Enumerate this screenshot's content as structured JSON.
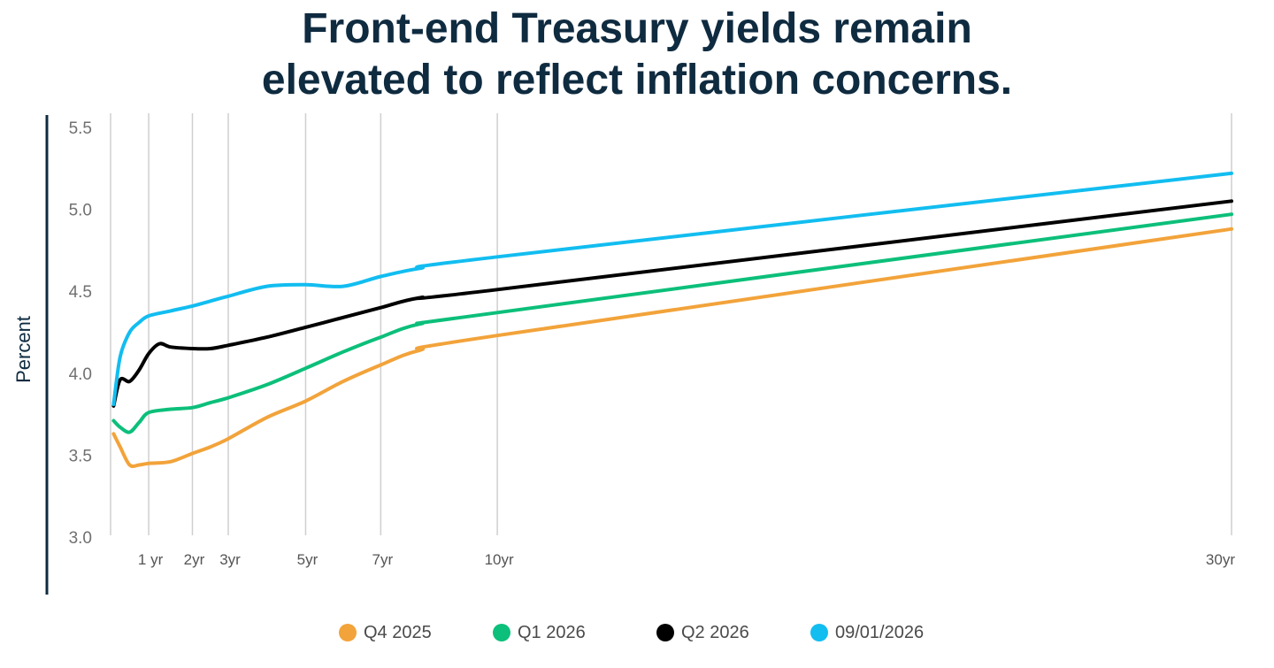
{
  "chart_data": {
    "type": "line",
    "title": [
      "Front-end Treasury yields remain",
      "elevated to reflect inflation concerns."
    ],
    "ylabel": "Percent",
    "xlabel": "",
    "ylim": [
      3.0,
      5.5
    ],
    "yticks": [
      "5.5",
      "5.0",
      "4.5",
      "4.0",
      "3.5",
      "3.0"
    ],
    "x_ticks": [
      {
        "x": 1,
        "label": "1 yr"
      },
      {
        "x": 2,
        "label": "2yr"
      },
      {
        "x": 3,
        "label": "3yr"
      },
      {
        "x": 5,
        "label": "5yr"
      },
      {
        "x": 7,
        "label": "7yr"
      },
      {
        "x": 10,
        "label": "10yr"
      },
      {
        "x": 30,
        "label": "30yr"
      }
    ],
    "grid_x": true,
    "legend_position": "bottom",
    "series": [
      {
        "name": "Q4 2025",
        "color": "#f2a33a",
        "points": [
          [
            0.08,
            3.63
          ],
          [
            0.25,
            3.55
          ],
          [
            0.5,
            3.44
          ],
          [
            0.75,
            3.44
          ],
          [
            1,
            3.45
          ],
          [
            1.5,
            3.46
          ],
          [
            2,
            3.51
          ],
          [
            2.5,
            3.55
          ],
          [
            3,
            3.6
          ],
          [
            4,
            3.73
          ],
          [
            5,
            3.83
          ],
          [
            6,
            3.95
          ],
          [
            7,
            4.05
          ],
          [
            8,
            4.14
          ],
          [
            10,
            4.23
          ],
          [
            30,
            4.88
          ]
        ]
      },
      {
        "name": "Q1 2026",
        "color": "#0cbf7a",
        "points": [
          [
            0.08,
            3.71
          ],
          [
            0.25,
            3.67
          ],
          [
            0.5,
            3.64
          ],
          [
            0.75,
            3.7
          ],
          [
            1,
            3.76
          ],
          [
            1.5,
            3.78
          ],
          [
            2,
            3.79
          ],
          [
            2.5,
            3.82
          ],
          [
            3,
            3.85
          ],
          [
            4,
            3.93
          ],
          [
            5,
            4.03
          ],
          [
            6,
            4.13
          ],
          [
            7,
            4.22
          ],
          [
            8,
            4.3
          ],
          [
            10,
            4.37
          ],
          [
            30,
            4.97
          ]
        ]
      },
      {
        "name": "Q2 2026",
        "color": "#000000",
        "points": [
          [
            0.08,
            3.8
          ],
          [
            0.25,
            3.96
          ],
          [
            0.5,
            3.95
          ],
          [
            0.75,
            4.02
          ],
          [
            1,
            4.12
          ],
          [
            1.25,
            4.18
          ],
          [
            1.5,
            4.16
          ],
          [
            2,
            4.15
          ],
          [
            2.5,
            4.15
          ],
          [
            3,
            4.17
          ],
          [
            4,
            4.22
          ],
          [
            5,
            4.28
          ],
          [
            6,
            4.34
          ],
          [
            7,
            4.4
          ],
          [
            8,
            4.46
          ],
          [
            10,
            4.51
          ],
          [
            30,
            5.05
          ]
        ]
      },
      {
        "name": "09/01/2026",
        "color": "#12bdf0",
        "points": [
          [
            0.08,
            3.81
          ],
          [
            0.25,
            4.1
          ],
          [
            0.5,
            4.25
          ],
          [
            0.75,
            4.31
          ],
          [
            1,
            4.35
          ],
          [
            1.5,
            4.38
          ],
          [
            2,
            4.41
          ],
          [
            2.5,
            4.44
          ],
          [
            3,
            4.47
          ],
          [
            4,
            4.53
          ],
          [
            5,
            4.54
          ],
          [
            6,
            4.53
          ],
          [
            7,
            4.59
          ],
          [
            8,
            4.64
          ],
          [
            10,
            4.71
          ],
          [
            30,
            5.22
          ]
        ]
      }
    ]
  }
}
